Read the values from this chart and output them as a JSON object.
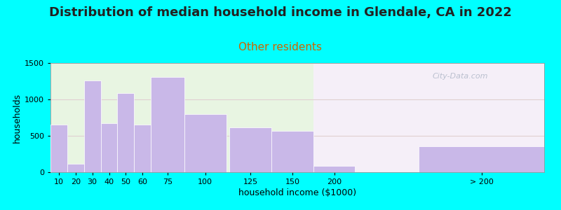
{
  "title": "Distribution of median household income in Glendale, CA in 2022",
  "subtitle": "Other residents",
  "xlabel": "household income ($1000)",
  "ylabel": "households",
  "background_color": "#00FFFF",
  "plot_bg_color_left": "#e8f5e2",
  "plot_bg_color_right": "#f5eff8",
  "bar_color": "#c9b8e8",
  "bar_edgecolor": "#ffffff",
  "categories": [
    "10",
    "20",
    "30",
    "40",
    "50",
    "60",
    "75",
    "100",
    "125",
    "150",
    "200",
    "> 200"
  ],
  "bar_lefts": [
    5,
    15,
    25,
    35,
    45,
    55,
    65,
    85,
    112,
    137,
    162,
    225
  ],
  "bar_widths": [
    10,
    10,
    10,
    10,
    10,
    10,
    20,
    25,
    25,
    25,
    25,
    75
  ],
  "values": [
    650,
    120,
    1260,
    670,
    1090,
    650,
    1310,
    800,
    620,
    570,
    90,
    360
  ],
  "ylim": [
    0,
    1500
  ],
  "yticks": [
    0,
    500,
    1000,
    1500
  ],
  "xlim": [
    5,
    300
  ],
  "split_x": 162,
  "title_fontsize": 13,
  "subtitle_fontsize": 11,
  "subtitle_color": "#cc6600",
  "axis_label_fontsize": 9,
  "tick_fontsize": 8,
  "watermark_text": "City-Data.com",
  "watermark_color": "#b0b8c8",
  "grid_color": "#e0d0d0",
  "spine_color": "#999999"
}
